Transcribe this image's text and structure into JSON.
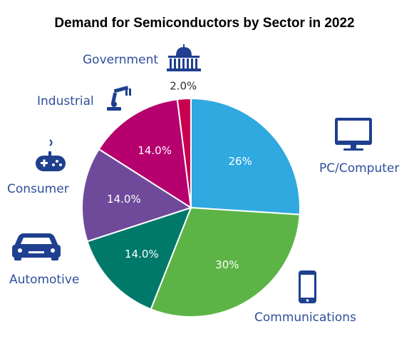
{
  "chart_data": {
    "type": "pie",
    "title": "Demand for Semiconductors by Sector in 2022",
    "slices": [
      {
        "label": "PC/Computer",
        "value": 26,
        "display": "26%",
        "color": "#2fa9e0",
        "icon": "monitor-icon"
      },
      {
        "label": "Communications",
        "value": 30,
        "display": "30%",
        "color": "#5db446",
        "icon": "smartphone-icon"
      },
      {
        "label": "Automotive",
        "value": 14.0,
        "display": "14.0%",
        "color": "#00796b",
        "icon": "car-icon"
      },
      {
        "label": "Consumer",
        "value": 14.0,
        "display": "14.0%",
        "color": "#6f4a9a",
        "icon": "gamepad-icon"
      },
      {
        "label": "Industrial",
        "value": 14.0,
        "display": "14.0%",
        "color": "#b5006e",
        "icon": "robot-arm-icon"
      },
      {
        "label": "Government",
        "value": 2.0,
        "display": "2.0%",
        "color": "#c8004f",
        "icon": "capitol-building-icon"
      }
    ]
  }
}
